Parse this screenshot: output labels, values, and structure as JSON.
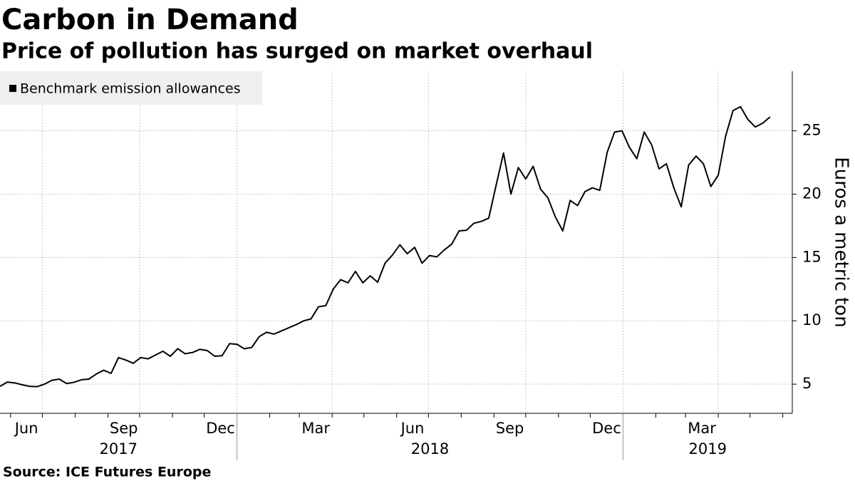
{
  "chart_data": {
    "type": "line",
    "title": "Carbon in Demand",
    "subtitle": "Price of pollution has surged on market overhaul",
    "source": "Source: ICE Futures Europe",
    "y_label": "Euros a metric ton",
    "x": [
      "2017-05-22",
      "2017-05-29",
      "2017-06-05",
      "2017-06-12",
      "2017-06-19",
      "2017-06-26",
      "2017-07-03",
      "2017-07-10",
      "2017-07-17",
      "2017-07-24",
      "2017-07-31",
      "2017-08-07",
      "2017-08-14",
      "2017-08-21",
      "2017-08-28",
      "2017-09-04",
      "2017-09-11",
      "2017-09-18",
      "2017-09-25",
      "2017-10-02",
      "2017-10-09",
      "2017-10-16",
      "2017-10-23",
      "2017-10-30",
      "2017-11-06",
      "2017-11-13",
      "2017-11-20",
      "2017-11-27",
      "2017-12-04",
      "2017-12-11",
      "2017-12-18",
      "2017-12-25",
      "2018-01-01",
      "2018-01-08",
      "2018-01-15",
      "2018-01-22",
      "2018-01-29",
      "2018-02-05",
      "2018-02-12",
      "2018-02-19",
      "2018-02-26",
      "2018-03-05",
      "2018-03-12",
      "2018-03-19",
      "2018-03-26",
      "2018-04-02",
      "2018-04-09",
      "2018-04-16",
      "2018-04-23",
      "2018-04-30",
      "2018-05-07",
      "2018-05-14",
      "2018-05-21",
      "2018-05-28",
      "2018-06-04",
      "2018-06-11",
      "2018-06-18",
      "2018-06-25",
      "2018-07-02",
      "2018-07-09",
      "2018-07-16",
      "2018-07-23",
      "2018-07-30",
      "2018-08-06",
      "2018-08-13",
      "2018-08-20",
      "2018-08-27",
      "2018-09-03",
      "2018-09-10",
      "2018-09-17",
      "2018-09-24",
      "2018-10-01",
      "2018-10-08",
      "2018-10-15",
      "2018-10-22",
      "2018-10-29",
      "2018-11-05",
      "2018-11-12",
      "2018-11-19",
      "2018-11-26",
      "2018-12-03",
      "2018-12-10",
      "2018-12-17",
      "2018-12-24",
      "2018-12-31",
      "2019-01-07",
      "2019-01-14",
      "2019-01-21",
      "2019-01-28",
      "2019-02-04",
      "2019-02-11",
      "2019-02-18",
      "2019-02-25",
      "2019-03-04",
      "2019-03-11",
      "2019-03-18",
      "2019-03-25",
      "2019-04-01",
      "2019-04-08",
      "2019-04-15",
      "2019-04-22",
      "2019-04-29",
      "2019-05-06",
      "2019-05-13",
      "2019-05-20"
    ],
    "series": [
      {
        "name": "Benchmark emission allowances",
        "color": "#000000",
        "values": [
          4.83,
          5.17,
          5.1,
          4.95,
          4.83,
          4.8,
          5.0,
          5.3,
          5.4,
          5.05,
          5.15,
          5.35,
          5.4,
          5.8,
          6.1,
          5.85,
          7.1,
          6.9,
          6.65,
          7.1,
          7.0,
          7.3,
          7.6,
          7.2,
          7.8,
          7.4,
          7.5,
          7.75,
          7.65,
          7.2,
          7.25,
          8.2,
          8.15,
          7.8,
          7.9,
          8.75,
          9.1,
          8.95,
          9.2,
          9.45,
          9.7,
          10.0,
          10.15,
          11.1,
          11.2,
          12.5,
          13.25,
          13.0,
          13.9,
          13.0,
          13.55,
          13.05,
          14.55,
          15.2,
          16.0,
          15.3,
          15.8,
          14.55,
          15.15,
          15.05,
          15.6,
          16.05,
          17.1,
          17.15,
          17.7,
          17.85,
          18.1,
          20.7,
          23.25,
          20.0,
          22.1,
          21.2,
          22.2,
          20.4,
          19.7,
          18.2,
          17.1,
          19.5,
          19.1,
          20.2,
          20.5,
          20.3,
          23.3,
          24.9,
          25.0,
          23.7,
          22.8,
          24.9,
          23.9,
          22.0,
          22.4,
          20.5,
          19.0,
          22.3,
          23.0,
          22.4,
          20.6,
          21.5,
          24.6,
          26.6,
          26.9,
          25.9,
          25.3,
          25.6,
          26.1
        ]
      }
    ],
    "xlim": [
      "2017-05-22",
      "2019-06-10"
    ],
    "xticks": [
      {
        "value": "2017-06",
        "label": "Jun"
      },
      {
        "value": "2017-09",
        "label": "Sep"
      },
      {
        "value": "2017-12",
        "label": "Dec"
      },
      {
        "value": "2018-03",
        "label": "Mar"
      },
      {
        "value": "2018-06",
        "label": "Jun"
      },
      {
        "value": "2018-09",
        "label": "Sep"
      },
      {
        "value": "2018-12",
        "label": "Dec"
      },
      {
        "value": "2019-03",
        "label": "Mar"
      }
    ],
    "xgrid": [
      "2017-07",
      "2017-10",
      "2018-01",
      "2018-04",
      "2018-07",
      "2018-10",
      "2019-01",
      "2019-04"
    ],
    "years": [
      "2017",
      "2018",
      "2019"
    ],
    "ylim": [
      2.7,
      29.7
    ],
    "yticks": [
      5,
      10,
      15,
      20,
      25
    ],
    "grid": true,
    "legend": "top-left"
  }
}
